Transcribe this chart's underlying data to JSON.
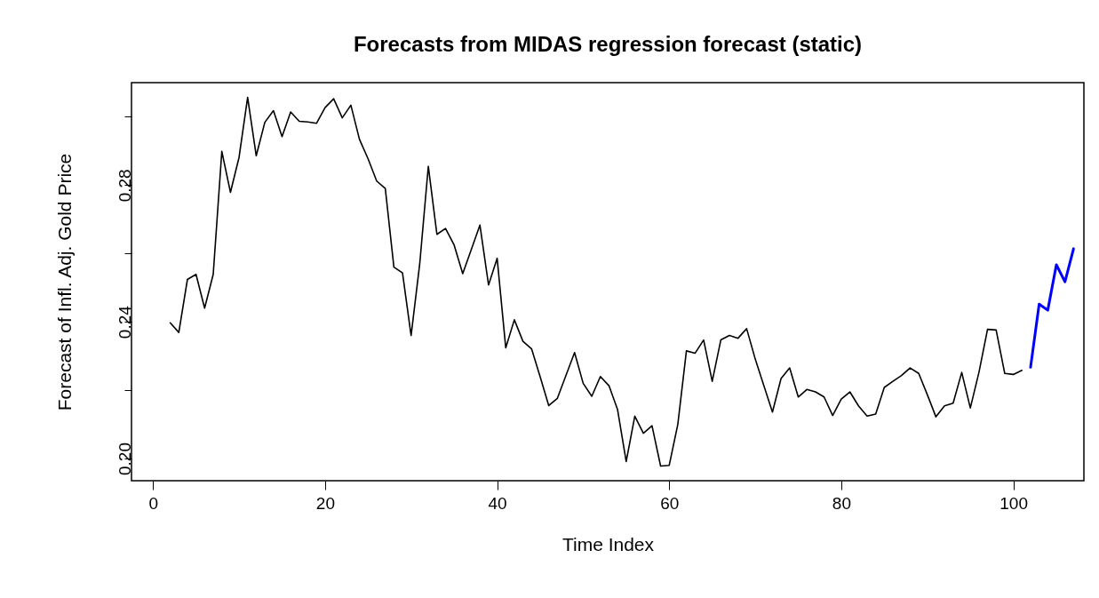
{
  "chart_data": {
    "type": "line",
    "title": "Forecasts from MIDAS regression forecast (static)",
    "xlabel": "Time Index",
    "ylabel": "Forecast of Infl. Adj. Gold Price",
    "xlim": [
      -2.5,
      108.2
    ],
    "ylim": [
      0.1935,
      0.31
    ],
    "xticks": [
      0,
      20,
      40,
      60,
      80,
      100
    ],
    "yticks": [
      {
        "value": 0.2,
        "label": "0.20"
      },
      {
        "value": 0.22,
        "label": null
      },
      0.24,
      {
        "value": 0.26,
        "label": null
      },
      0.28,
      {
        "value": 0.3,
        "label": null
      }
    ],
    "grid": false,
    "legend": false,
    "line_style": "solid",
    "series": [
      {
        "color": "#000000",
        "x": [
          2,
          3,
          4,
          5,
          6,
          7,
          8,
          9,
          10,
          11,
          12,
          13,
          14,
          15,
          16,
          17,
          18,
          19,
          20,
          21,
          22,
          23,
          24,
          25,
          26,
          27,
          28,
          29,
          30,
          31,
          32,
          33,
          34,
          35,
          36,
          37,
          38,
          39,
          40,
          41,
          42,
          43,
          44,
          45,
          46,
          47,
          48,
          49,
          50,
          51,
          52,
          53,
          54,
          55,
          56,
          57,
          58,
          59,
          60,
          61,
          62,
          63,
          64,
          65,
          66,
          67,
          68,
          69,
          70,
          71,
          72,
          73,
          74,
          75,
          76,
          77,
          78,
          79,
          80,
          81,
          82,
          83,
          84,
          85,
          86,
          87,
          88,
          89,
          90,
          91,
          92,
          93,
          94,
          95,
          96,
          97,
          98,
          99,
          100,
          101
        ],
        "values": [
          0.2397,
          0.2369,
          0.2524,
          0.2539,
          0.244,
          0.2539,
          0.2899,
          0.2779,
          0.2881,
          0.3057,
          0.2886,
          0.2984,
          0.3018,
          0.2942,
          0.3014,
          0.2987,
          0.2985,
          0.2981,
          0.3027,
          0.3053,
          0.2997,
          0.3034,
          0.2934,
          0.2877,
          0.2812,
          0.279,
          0.256,
          0.2543,
          0.236,
          0.2569,
          0.2855,
          0.2656,
          0.2673,
          0.2625,
          0.2541,
          0.2612,
          0.2683,
          0.2508,
          0.2586,
          0.2324,
          0.2406,
          0.2343,
          0.2321,
          0.2239,
          0.2155,
          0.2176,
          0.2243,
          0.231,
          0.222,
          0.2182,
          0.224,
          0.2213,
          0.2143,
          0.1991,
          0.2124,
          0.2074,
          0.2096,
          0.1978,
          0.198,
          0.21,
          0.2315,
          0.2308,
          0.2347,
          0.2226,
          0.2347,
          0.236,
          0.2352,
          0.238,
          0.2291,
          0.2213,
          0.2136,
          0.2234,
          0.2265,
          0.218,
          0.2202,
          0.2195,
          0.218,
          0.2126,
          0.2174,
          0.2195,
          0.2154,
          0.2124,
          0.213,
          0.2208,
          0.2226,
          0.2243,
          0.2265,
          0.2249,
          0.2187,
          0.2122,
          0.2154,
          0.2162,
          0.2252,
          0.2148,
          0.2252,
          0.2378,
          0.2376,
          0.2249,
          0.2246,
          0.2258
        ]
      },
      {
        "color": "#0000ff",
        "x": [
          102,
          103,
          104,
          105,
          106,
          107
        ],
        "values": [
          0.2267,
          0.2452,
          0.2434,
          0.2567,
          0.2517,
          0.2614
        ]
      }
    ]
  }
}
